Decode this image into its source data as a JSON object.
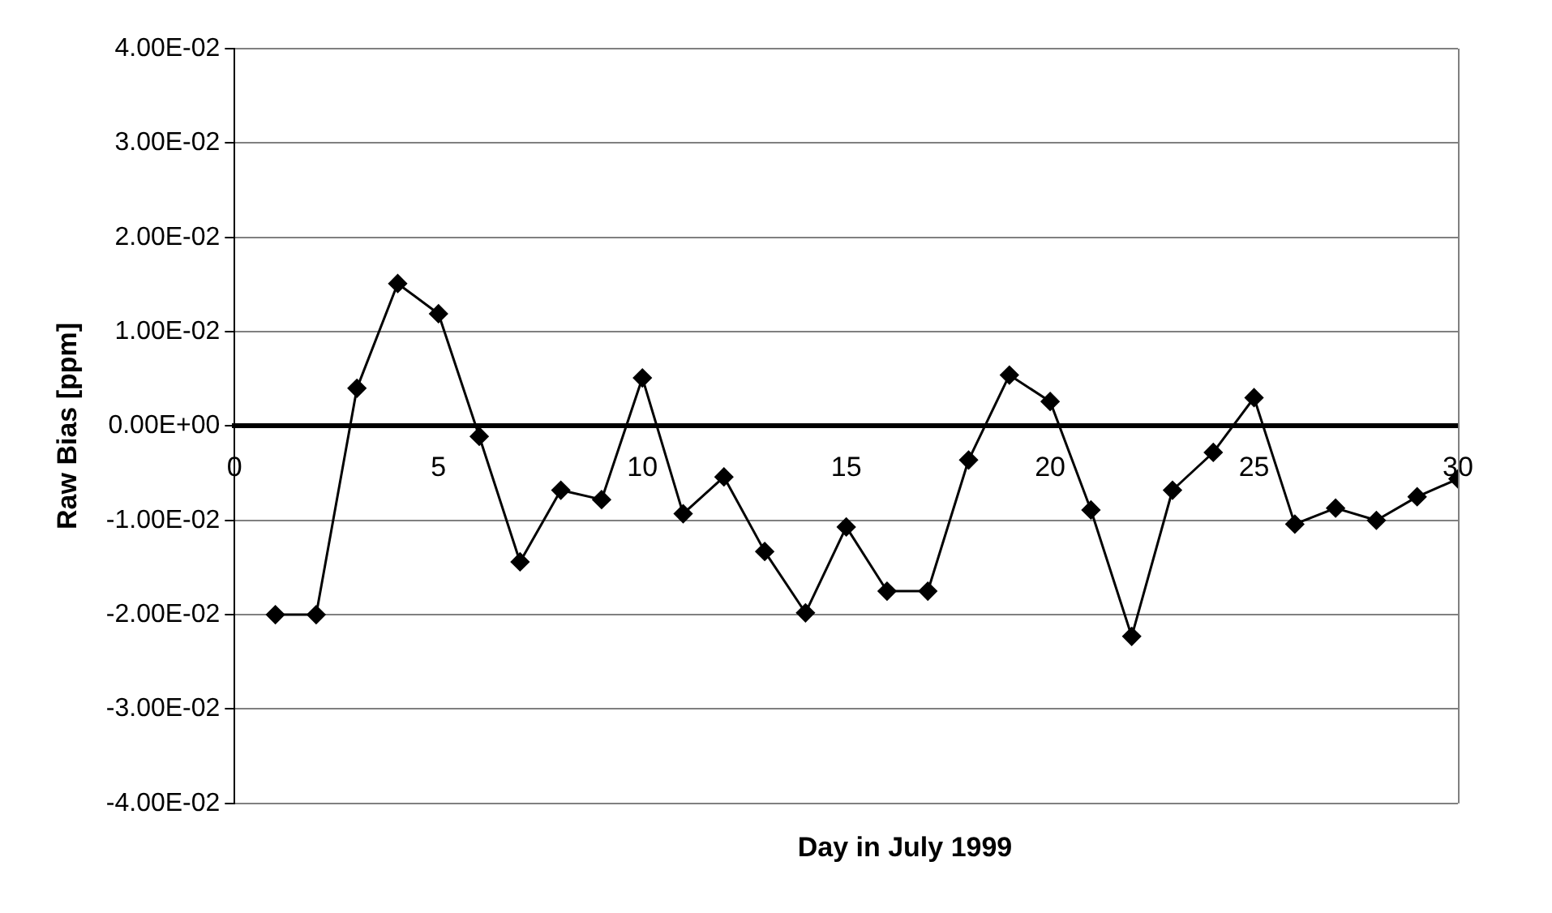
{
  "chart_data": {
    "type": "line",
    "xlabel": "Day in July 1999",
    "ylabel": "Raw Bias [ppm]",
    "x": [
      1,
      2,
      3,
      4,
      5,
      6,
      7,
      8,
      9,
      10,
      11,
      12,
      13,
      14,
      15,
      16,
      17,
      18,
      19,
      20,
      21,
      22,
      23,
      24,
      25,
      26,
      27,
      28,
      29,
      30
    ],
    "series": [
      {
        "color": "#000000",
        "values": [
          -0.02,
          -0.02,
          0.004,
          0.0151,
          0.0119,
          -0.0011,
          -0.0144,
          -0.0068,
          -0.0078,
          0.0051,
          -0.0093,
          -0.0054,
          -0.0133,
          -0.0198,
          -0.0107,
          -0.0175,
          -0.0175,
          -0.0036,
          0.0054,
          0.0026,
          -0.0089,
          -0.0223,
          -0.0068,
          -0.0028,
          0.003,
          -0.0104,
          -0.0087,
          -0.01,
          -0.0075,
          -0.0056
        ]
      }
    ],
    "xlim": [
      0,
      30
    ],
    "xticks": [
      0,
      5,
      10,
      15,
      20,
      25,
      30
    ],
    "ylim": [
      -0.04,
      0.04
    ],
    "yticks": [
      {
        "value": -0.04,
        "label": "-4.00E-02"
      },
      {
        "value": -0.03,
        "label": "-3.00E-02"
      },
      {
        "value": -0.02,
        "label": "-2.00E-02"
      },
      {
        "value": -0.01,
        "label": "-1.00E-02"
      },
      {
        "value": 0,
        "label": "0.00E+00"
      },
      {
        "value": 0.01,
        "label": "1.00E-02"
      },
      {
        "value": 0.02,
        "label": "2.00E-02"
      },
      {
        "value": 0.03,
        "label": "3.00E-02"
      },
      {
        "value": 0.04,
        "label": "4.00E-02"
      }
    ],
    "grid": "y",
    "legend": false,
    "marker": "diamond",
    "line_style": "solid"
  }
}
